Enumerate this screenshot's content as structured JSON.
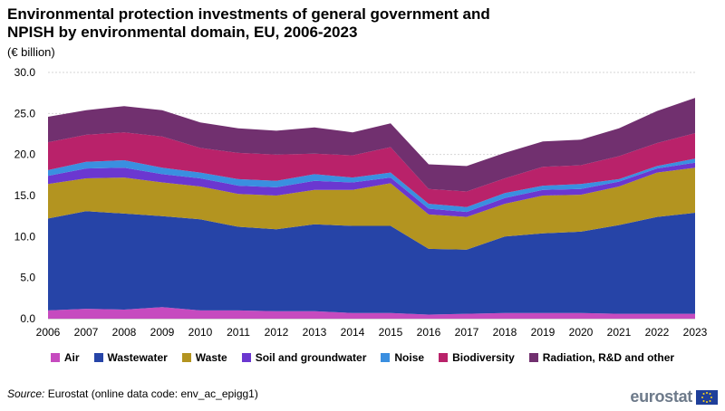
{
  "header": {
    "title_line1": "Environmental protection investments of general government and",
    "title_line2": "NPISH by environmental domain, EU, 2006-2023",
    "unit": "(€ billion)"
  },
  "footer": {
    "source_label": "Source:",
    "source_text": " Eurostat (online data code: env_ac_epigg1)",
    "logo_text": "eurostat"
  },
  "colors": {
    "Air": "#c64bbf",
    "Wastewater": "#2644a7",
    "Waste": "#b39420",
    "Soil and groundwater": "#6b37d0",
    "Noise": "#3a8fe0",
    "Biodiversity": "#b9226a",
    "Radiation, R&D and other": "#71306f"
  },
  "chart_data": {
    "type": "area",
    "stacked": true,
    "title": "Environmental protection investments of general government and NPISH by environmental domain, EU, 2006-2023",
    "ylabel": "€ billion",
    "xlabel": "",
    "ylim": [
      0,
      30
    ],
    "yticks": [
      "0.0",
      "5.0",
      "10.0",
      "15.0",
      "20.0",
      "25.0",
      "30.0"
    ],
    "ytick_values": [
      0,
      5,
      10,
      15,
      20,
      25,
      30
    ],
    "grid": true,
    "legend_position": "bottom",
    "categories": [
      "2006",
      "2007",
      "2008",
      "2009",
      "2010",
      "2011",
      "2012",
      "2013",
      "2014",
      "2015",
      "2016",
      "2017",
      "2018",
      "2019",
      "2020",
      "2021",
      "2022",
      "2023"
    ],
    "series": [
      {
        "name": "Air",
        "values": [
          1.0,
          1.2,
          1.1,
          1.4,
          1.0,
          1.0,
          0.9,
          0.9,
          0.7,
          0.7,
          0.5,
          0.6,
          0.7,
          0.7,
          0.7,
          0.6,
          0.6,
          0.6
        ]
      },
      {
        "name": "Wastewater",
        "values": [
          11.2,
          11.9,
          11.7,
          11.1,
          11.1,
          10.2,
          10.0,
          10.6,
          10.6,
          10.6,
          8.0,
          7.8,
          9.3,
          9.7,
          9.9,
          10.8,
          11.8,
          12.3
        ]
      },
      {
        "name": "Waste",
        "values": [
          4.2,
          4.0,
          4.4,
          4.1,
          4.0,
          4.0,
          4.1,
          4.2,
          4.4,
          5.2,
          4.2,
          4.0,
          4.0,
          4.6,
          4.5,
          4.7,
          5.4,
          5.5
        ]
      },
      {
        "name": "Soil and groundwater",
        "values": [
          1.0,
          1.2,
          1.2,
          1.0,
          1.0,
          1.0,
          1.0,
          1.1,
          0.9,
          0.7,
          0.7,
          0.6,
          0.7,
          0.7,
          0.7,
          0.6,
          0.5,
          0.6
        ]
      },
      {
        "name": "Noise",
        "values": [
          0.7,
          0.8,
          0.9,
          0.8,
          0.7,
          0.8,
          0.8,
          0.8,
          0.6,
          0.6,
          0.6,
          0.6,
          0.6,
          0.5,
          0.6,
          0.3,
          0.3,
          0.5
        ]
      },
      {
        "name": "Biodiversity",
        "values": [
          3.4,
          3.3,
          3.4,
          3.8,
          3.0,
          3.2,
          3.2,
          2.5,
          2.7,
          3.1,
          1.8,
          1.9,
          1.8,
          2.3,
          2.3,
          2.8,
          2.8,
          3.1
        ]
      },
      {
        "name": "Radiation, R&D and other",
        "values": [
          3.1,
          3.0,
          3.2,
          3.2,
          3.1,
          3.0,
          2.9,
          3.2,
          2.8,
          2.9,
          3.0,
          3.1,
          3.1,
          3.1,
          3.1,
          3.4,
          3.9,
          4.3
        ]
      }
    ]
  }
}
